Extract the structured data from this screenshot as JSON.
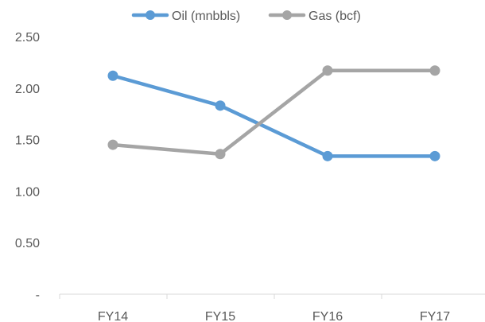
{
  "chart_data": {
    "type": "line",
    "categories": [
      "FY14",
      "FY15",
      "FY16",
      "FY17"
    ],
    "series": [
      {
        "name": "Oil (mnbbls)",
        "values": [
          2.12,
          1.83,
          1.34,
          1.34
        ],
        "color": "#5B9BD5"
      },
      {
        "name": "Gas (bcf)",
        "values": [
          1.45,
          1.36,
          2.17,
          2.17
        ],
        "color": "#A5A5A5"
      }
    ],
    "ylim": [
      0,
      2.5
    ],
    "yticks": [
      "-",
      "0.50",
      "1.00",
      "1.50",
      "2.00",
      "2.50"
    ],
    "legend_position": "top",
    "grid": false,
    "axis_color": "#D9D9D9"
  }
}
